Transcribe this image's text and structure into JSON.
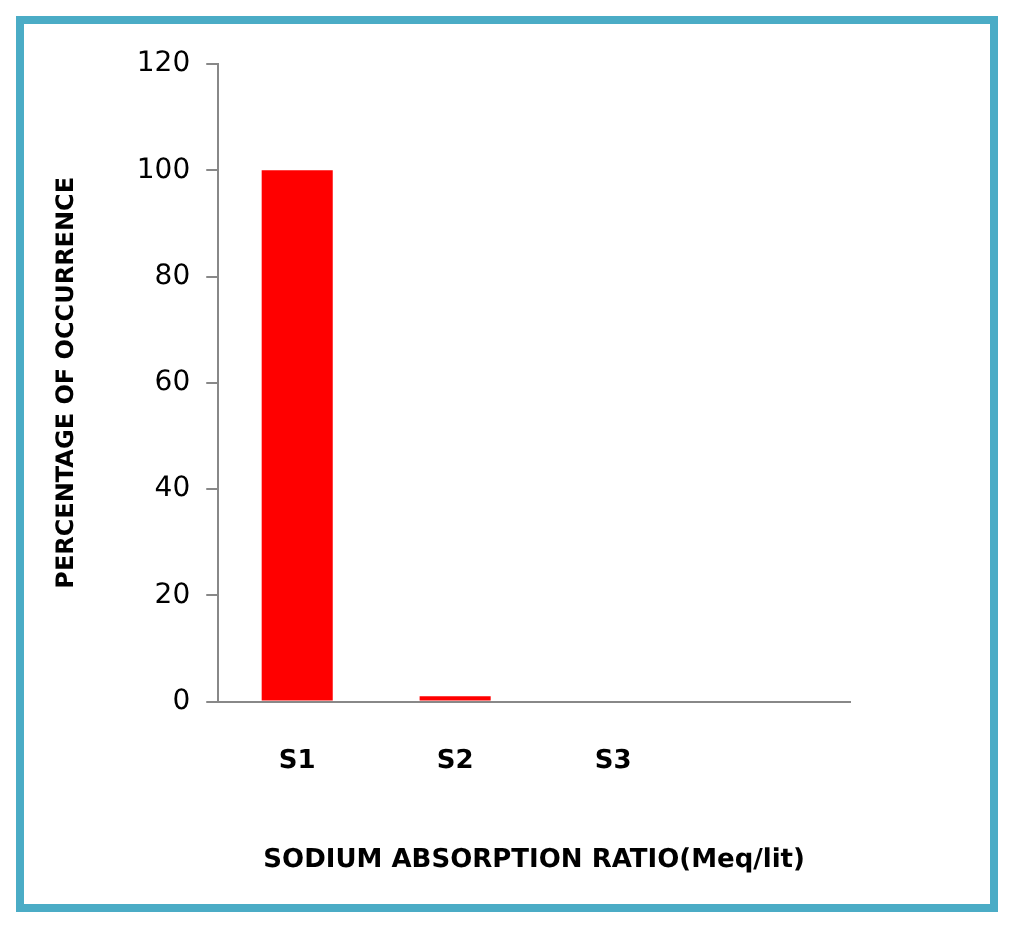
{
  "chart_data": {
    "type": "bar",
    "xlabel": "SODIUM ABSORPTION RATIO(Meq/lit)",
    "ylabel": "PERCENTAGE OF OCCURRENCE",
    "categories": [
      "S1",
      "S2",
      "S3",
      null
    ],
    "values": [
      100,
      1,
      0,
      null
    ],
    "color": "#ff0000",
    "ylim": [
      0,
      120
    ],
    "yticks": [
      0,
      20,
      40,
      60,
      80,
      100,
      120
    ],
    "grid": false,
    "legend": false
  }
}
